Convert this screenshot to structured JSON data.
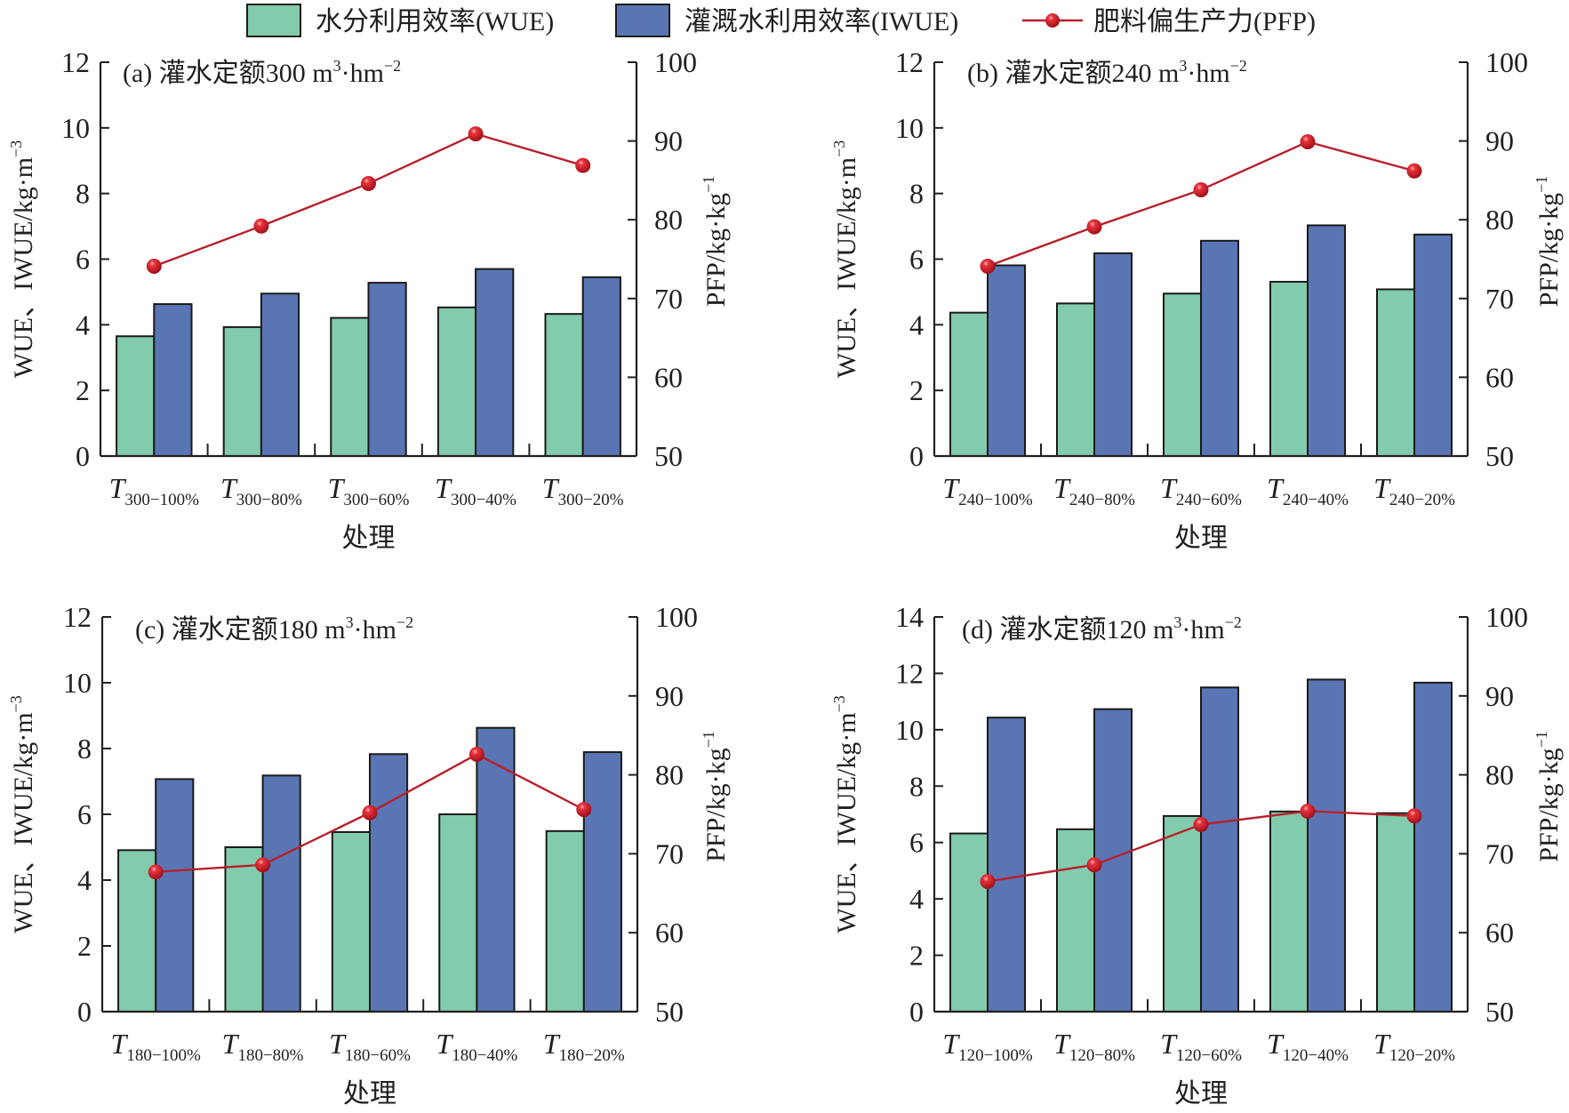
{
  "colors": {
    "wue": "#82CBAD",
    "iwue": "#5A75B3",
    "pfp_line": "#B8202C",
    "pfp_marker": "#D42030",
    "axis": "#231f20"
  },
  "legend": {
    "items": [
      {
        "key": "wue",
        "label": "水分利用效率(WUE)",
        "type": "bar"
      },
      {
        "key": "iwue",
        "label": "灌溉水利用效率(IWUE)",
        "type": "bar"
      },
      {
        "key": "pfp",
        "label": "肥料偏生产力(PFP)",
        "type": "line-marker"
      }
    ],
    "placement": "top-center"
  },
  "chart_data": [
    {
      "type": "bar",
      "panel": "a",
      "title": "(a) 灌水定额300 m³·hm⁻²",
      "title_parts": {
        "prefix": "(a) 灌水定额300 m",
        "sup1": "3",
        "mid": "·hm",
        "sup2": "−2"
      },
      "categories": [
        "T300−100%",
        "T300−80%",
        "T300−60%",
        "T300−40%",
        "T300−20%"
      ],
      "category_parts": [
        {
          "main": "T",
          "sub": "300−100%"
        },
        {
          "main": "T",
          "sub": "300−80%"
        },
        {
          "main": "T",
          "sub": "300−60%"
        },
        {
          "main": "T",
          "sub": "300−40%"
        },
        {
          "main": "T",
          "sub": "300−20%"
        }
      ],
      "xlabel": "处理",
      "ylabel": "WUE、IWUE/kg·m⁻³",
      "ylabel_parts": {
        "main": "WUE、IWUE/kg·m",
        "sup": "−3"
      },
      "y2label": "PFP/kg·kg⁻¹",
      "y2label_parts": {
        "main": "PFP/kg·kg",
        "sup": "−1"
      },
      "ylim": [
        0,
        12
      ],
      "yticks": [
        0,
        2,
        4,
        6,
        8,
        10,
        12
      ],
      "y2lim": [
        50,
        100
      ],
      "y2ticks": [
        50,
        60,
        70,
        80,
        90,
        100
      ],
      "grid": false,
      "series": [
        {
          "name": "水分利用效率(WUE)",
          "key": "wue",
          "axis": "left",
          "type": "bar",
          "values": [
            3.65,
            3.93,
            4.21,
            4.53,
            4.33
          ]
        },
        {
          "name": "灌溉水利用效率(IWUE)",
          "key": "iwue",
          "axis": "left",
          "type": "bar",
          "values": [
            4.63,
            4.95,
            5.28,
            5.7,
            5.45
          ]
        },
        {
          "name": "肥料偏生产力(PFP)",
          "key": "pfp",
          "axis": "right",
          "type": "line",
          "values": [
            74.1,
            79.2,
            84.6,
            90.9,
            86.9
          ]
        }
      ]
    },
    {
      "type": "bar",
      "panel": "b",
      "title": "(b) 灌水定额240 m³·hm⁻²",
      "title_parts": {
        "prefix": "(b) 灌水定额240 m",
        "sup1": "3",
        "mid": "·hm",
        "sup2": "−2"
      },
      "categories": [
        "T240−100%",
        "T240−80%",
        "T240−60%",
        "T240−40%",
        "T240−20%"
      ],
      "category_parts": [
        {
          "main": "T",
          "sub": "240−100%"
        },
        {
          "main": "T",
          "sub": "240−80%"
        },
        {
          "main": "T",
          "sub": "240−60%"
        },
        {
          "main": "T",
          "sub": "240−40%"
        },
        {
          "main": "T",
          "sub": "240−20%"
        }
      ],
      "xlabel": "处理",
      "ylabel": "WUE、IWUE/kg·m⁻³",
      "ylabel_parts": {
        "main": "WUE、IWUE/kg·m",
        "sup": "−3"
      },
      "y2label": "PFP/kg·kg⁻¹",
      "y2label_parts": {
        "main": "PFP/kg·kg",
        "sup": "−1"
      },
      "ylim": [
        0,
        12
      ],
      "yticks": [
        0,
        2,
        4,
        6,
        8,
        10,
        12
      ],
      "y2lim": [
        50,
        100
      ],
      "y2ticks": [
        50,
        60,
        70,
        80,
        90,
        100
      ],
      "grid": false,
      "series": [
        {
          "name": "水分利用效率(WUE)",
          "key": "wue",
          "axis": "left",
          "type": "bar",
          "values": [
            4.37,
            4.65,
            4.95,
            5.31,
            5.08
          ]
        },
        {
          "name": "灌溉水利用效率(IWUE)",
          "key": "iwue",
          "axis": "left",
          "type": "bar",
          "values": [
            5.81,
            6.18,
            6.56,
            7.03,
            6.75
          ]
        },
        {
          "name": "肥料偏生产力(PFP)",
          "key": "pfp",
          "axis": "right",
          "type": "line",
          "values": [
            74.1,
            79.1,
            83.8,
            89.9,
            86.2
          ]
        }
      ]
    },
    {
      "type": "bar",
      "panel": "c",
      "title": "(c) 灌水定额180 m³·hm⁻²",
      "title_parts": {
        "prefix": "(c) 灌水定额180 m",
        "sup1": "3",
        "mid": "·hm",
        "sup2": "−2"
      },
      "categories": [
        "T180−100%",
        "T180−80%",
        "T180−60%",
        "T180−40%",
        "T180−20%"
      ],
      "category_parts": [
        {
          "main": "T",
          "sub": "180−100%"
        },
        {
          "main": "T",
          "sub": "180−80%"
        },
        {
          "main": "T",
          "sub": "180−60%"
        },
        {
          "main": "T",
          "sub": "180−40%"
        },
        {
          "main": "T",
          "sub": "180−20%"
        }
      ],
      "xlabel": "处理",
      "ylabel": "WUE、IWUE/kg·m⁻³",
      "ylabel_parts": {
        "main": "WUE、IWUE/kg·m",
        "sup": "−3"
      },
      "y2label": "PFP/kg·kg⁻¹",
      "y2label_parts": {
        "main": "PFP/kg·kg",
        "sup": "−1"
      },
      "ylim": [
        0,
        12
      ],
      "yticks": [
        0,
        2,
        4,
        6,
        8,
        10,
        12
      ],
      "y2lim": [
        50,
        100
      ],
      "y2ticks": [
        50,
        60,
        70,
        80,
        90,
        100
      ],
      "grid": false,
      "series": [
        {
          "name": "水分利用效率(WUE)",
          "key": "wue",
          "axis": "left",
          "type": "bar",
          "values": [
            4.91,
            5.0,
            5.46,
            6.0,
            5.49
          ]
        },
        {
          "name": "灌溉水利用效率(IWUE)",
          "key": "iwue",
          "axis": "left",
          "type": "bar",
          "values": [
            7.07,
            7.18,
            7.83,
            8.63,
            7.89
          ]
        },
        {
          "name": "肥料偏生产力(PFP)",
          "key": "pfp",
          "axis": "right",
          "type": "line",
          "values": [
            67.7,
            68.6,
            75.2,
            82.6,
            75.6
          ]
        }
      ]
    },
    {
      "type": "bar",
      "panel": "d",
      "title": "(d) 灌水定额120 m³·hm⁻²",
      "title_parts": {
        "prefix": "(d) 灌水定额120 m",
        "sup1": "3",
        "mid": "·hm",
        "sup2": "−2"
      },
      "categories": [
        "T120−100%",
        "T120−80%",
        "T120−60%",
        "T120−40%",
        "T120−20%"
      ],
      "category_parts": [
        {
          "main": "T",
          "sub": "120−100%"
        },
        {
          "main": "T",
          "sub": "120−80%"
        },
        {
          "main": "T",
          "sub": "120−60%"
        },
        {
          "main": "T",
          "sub": "120−40%"
        },
        {
          "main": "T",
          "sub": "120−20%"
        }
      ],
      "xlabel": "处理",
      "ylabel": "WUE、IWUE/kg·m⁻³",
      "ylabel_parts": {
        "main": "WUE、IWUE/kg·m",
        "sup": "−3"
      },
      "y2label": "PFP/kg·kg⁻¹",
      "y2label_parts": {
        "main": "PFP/kg·kg",
        "sup": "−1"
      },
      "ylim": [
        0,
        14
      ],
      "yticks": [
        0,
        2,
        4,
        6,
        8,
        10,
        12,
        14
      ],
      "y2lim": [
        50,
        100
      ],
      "y2ticks": [
        50,
        60,
        70,
        80,
        90,
        100
      ],
      "grid": false,
      "series": [
        {
          "name": "水分利用效率(WUE)",
          "key": "wue",
          "axis": "left",
          "type": "bar",
          "values": [
            6.32,
            6.47,
            6.94,
            7.1,
            7.04
          ]
        },
        {
          "name": "灌溉水利用效率(IWUE)",
          "key": "iwue",
          "axis": "left",
          "type": "bar",
          "values": [
            10.43,
            10.73,
            11.5,
            11.78,
            11.67
          ]
        },
        {
          "name": "肥料偏生产力(PFP)",
          "key": "pfp",
          "axis": "right",
          "type": "line",
          "values": [
            66.5,
            68.6,
            73.7,
            75.4,
            74.8
          ]
        }
      ]
    }
  ]
}
